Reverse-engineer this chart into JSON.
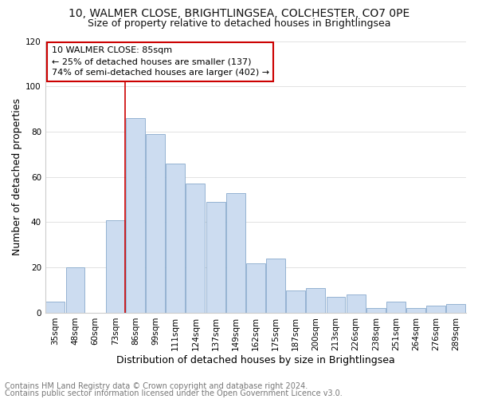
{
  "title1": "10, WALMER CLOSE, BRIGHTLINGSEA, COLCHESTER, CO7 0PE",
  "title2": "Size of property relative to detached houses in Brightlingsea",
  "xlabel": "Distribution of detached houses by size in Brightlingsea",
  "ylabel": "Number of detached properties",
  "footer1": "Contains HM Land Registry data © Crown copyright and database right 2024.",
  "footer2": "Contains public sector information licensed under the Open Government Licence v3.0.",
  "annotation_line1": "10 WALMER CLOSE: 85sqm",
  "annotation_line2": "← 25% of detached houses are smaller (137)",
  "annotation_line3": "74% of semi-detached houses are larger (402) →",
  "categories": [
    "35sqm",
    "48sqm",
    "60sqm",
    "73sqm",
    "86sqm",
    "99sqm",
    "111sqm",
    "124sqm",
    "137sqm",
    "149sqm",
    "162sqm",
    "175sqm",
    "187sqm",
    "200sqm",
    "213sqm",
    "226sqm",
    "238sqm",
    "251sqm",
    "264sqm",
    "276sqm",
    "289sqm"
  ],
  "values": [
    5,
    20,
    0,
    41,
    86,
    79,
    66,
    57,
    49,
    53,
    22,
    24,
    10,
    11,
    7,
    8,
    2,
    5,
    2,
    3,
    4
  ],
  "bar_color": "#ccdcf0",
  "bar_edge_color": "#88aacc",
  "vline_color": "#cc0000",
  "vline_x": 3.5,
  "ylim": [
    0,
    120
  ],
  "yticks": [
    0,
    20,
    40,
    60,
    80,
    100,
    120
  ],
  "bg_color": "#ffffff",
  "plot_bg_color": "#ffffff",
  "grid_color": "#dddddd",
  "annotation_box_edge": "#cc0000",
  "title1_fontsize": 10,
  "title2_fontsize": 9,
  "axis_label_fontsize": 9,
  "tick_fontsize": 7.5,
  "footer_fontsize": 7,
  "annotation_fontsize": 8
}
